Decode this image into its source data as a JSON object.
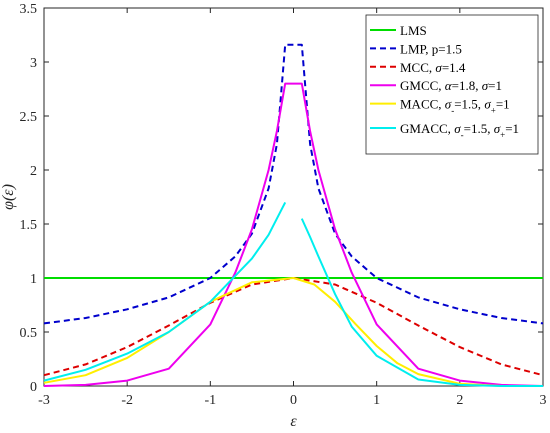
{
  "chart_data": {
    "type": "line",
    "xlabel": "ε",
    "ylabel": "φ(ε)",
    "xlim": [
      -3,
      3
    ],
    "ylim": [
      0,
      3.5
    ],
    "x_ticks": [
      "-3",
      "-2",
      "-1",
      "0",
      "1",
      "2",
      "3"
    ],
    "y_ticks": [
      "0",
      "0.5",
      "1",
      "1.5",
      "2",
      "2.5",
      "3",
      "3.5"
    ],
    "grid": false,
    "legend_position": "top-right",
    "series": [
      {
        "name": "LMS",
        "label": "LMS",
        "color": "#00dd00",
        "dash": "solid",
        "x": [
          -3,
          3
        ],
        "y": [
          1,
          1
        ]
      },
      {
        "name": "LMP, p=1.5",
        "label": "LMP, p=1.5",
        "color": "#0000cc",
        "dash": "dashed",
        "x": [
          -3,
          -2.5,
          -2,
          -1.5,
          -1,
          -0.7,
          -0.5,
          -0.3,
          -0.2,
          -0.1,
          0.1,
          0.2,
          0.3,
          0.5,
          0.7,
          1,
          1.5,
          2,
          2.5,
          3
        ],
        "y": [
          0.58,
          0.63,
          0.71,
          0.82,
          1.0,
          1.2,
          1.41,
          1.83,
          2.24,
          3.16,
          3.16,
          2.24,
          1.83,
          1.41,
          1.2,
          1.0,
          0.82,
          0.71,
          0.63,
          0.58
        ]
      },
      {
        "name": "MCC, σ=1.4",
        "label_parts": [
          "MCC, ",
          "σ",
          "=1.4"
        ],
        "color": "#dd0000",
        "dash": "dashed",
        "x": [
          -3,
          -2.5,
          -2,
          -1.5,
          -1,
          -0.5,
          0,
          0.5,
          1,
          1.5,
          2,
          2.5,
          3
        ],
        "y": [
          0.1,
          0.2,
          0.36,
          0.56,
          0.77,
          0.94,
          1.0,
          0.94,
          0.77,
          0.56,
          0.36,
          0.2,
          0.1
        ]
      },
      {
        "name": "GMCC, α=1.8, σ=1",
        "label_parts": [
          "GMCC, ",
          "α",
          "=1.8, ",
          "σ",
          "=1"
        ],
        "color": "#ee00ee",
        "dash": "solid",
        "x": [
          -3,
          -2.5,
          -2,
          -1.5,
          -1,
          -0.7,
          -0.5,
          -0.3,
          -0.2,
          -0.1,
          0.1,
          0.2,
          0.3,
          0.5,
          0.7,
          1,
          1.5,
          2,
          2.5,
          3
        ],
        "y": [
          0.0,
          0.01,
          0.05,
          0.16,
          0.57,
          1.05,
          1.45,
          2.0,
          2.36,
          2.8,
          2.8,
          2.36,
          2.0,
          1.45,
          1.05,
          0.57,
          0.16,
          0.05,
          0.01,
          0.0
        ]
      },
      {
        "name": "MACC, σ-=1.5, σ+=1",
        "label_parts": [
          "MACC, ",
          "σ",
          "-",
          "=1.5, ",
          "σ",
          "+",
          "=1"
        ],
        "color": "#ffee00",
        "dash": "solid",
        "x": [
          -3,
          -2.5,
          -2,
          -1.5,
          -1,
          -0.5,
          0,
          0.25,
          0.5,
          0.75,
          1,
          1.25,
          1.5,
          2,
          2.5,
          3
        ],
        "y": [
          0.03,
          0.1,
          0.26,
          0.5,
          0.78,
          0.96,
          1.0,
          0.94,
          0.78,
          0.57,
          0.37,
          0.21,
          0.11,
          0.02,
          0.0,
          0.0
        ]
      },
      {
        "name": "GMACC, σ-=1.5, σ+=1",
        "label_parts": [
          "GMACC, ",
          "σ",
          "-",
          "=1.5, ",
          "σ",
          "+",
          "=1"
        ],
        "color": "#00eeee",
        "dash": "solid",
        "x": [
          -3,
          -2.5,
          -2,
          -1.5,
          -1,
          -0.7,
          -0.5,
          -0.3,
          -0.2,
          -0.1
        ],
        "y": [
          0.05,
          0.15,
          0.3,
          0.5,
          0.78,
          1.02,
          1.18,
          1.4,
          1.55,
          1.7
        ]
      },
      {
        "name": "GMACC, σ-=1.5, σ+=1",
        "color": "#00eeee",
        "dash": "solid",
        "continuation": true,
        "x": [
          0.1,
          0.2,
          0.3,
          0.5,
          0.7,
          1,
          1.5,
          2,
          2.5,
          3
        ],
        "y": [
          1.55,
          1.38,
          1.2,
          0.85,
          0.55,
          0.28,
          0.06,
          0.01,
          0.0,
          0.0
        ]
      }
    ]
  }
}
